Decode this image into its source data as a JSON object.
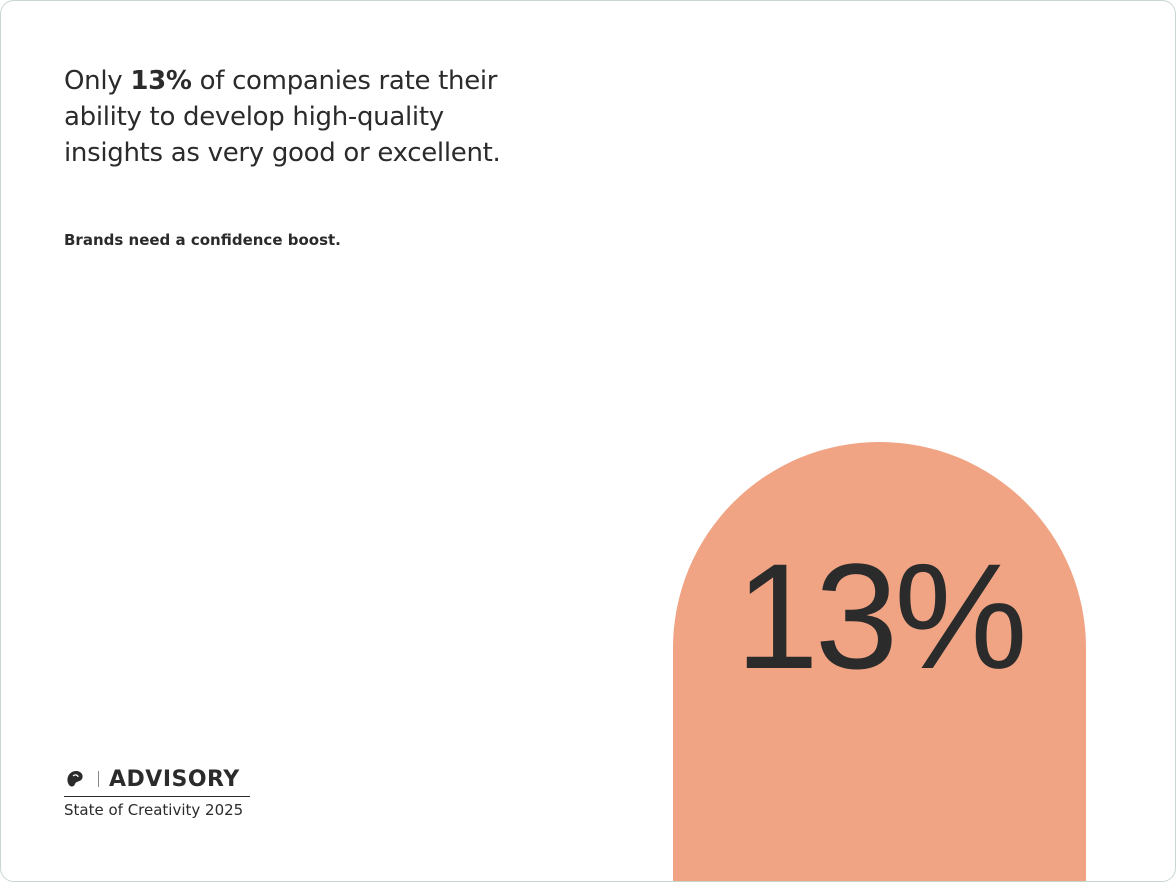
{
  "headline": {
    "prefix": "Only",
    "highlight": "13%",
    "suffix": "of companies rate their ability to develop high-quality insights as very good or excellent."
  },
  "subtitle": "Brands need a confidence boost.",
  "stat": "13%",
  "footer": {
    "brand": "ADVISORY",
    "edition": "State of Creativity 2025"
  }
}
